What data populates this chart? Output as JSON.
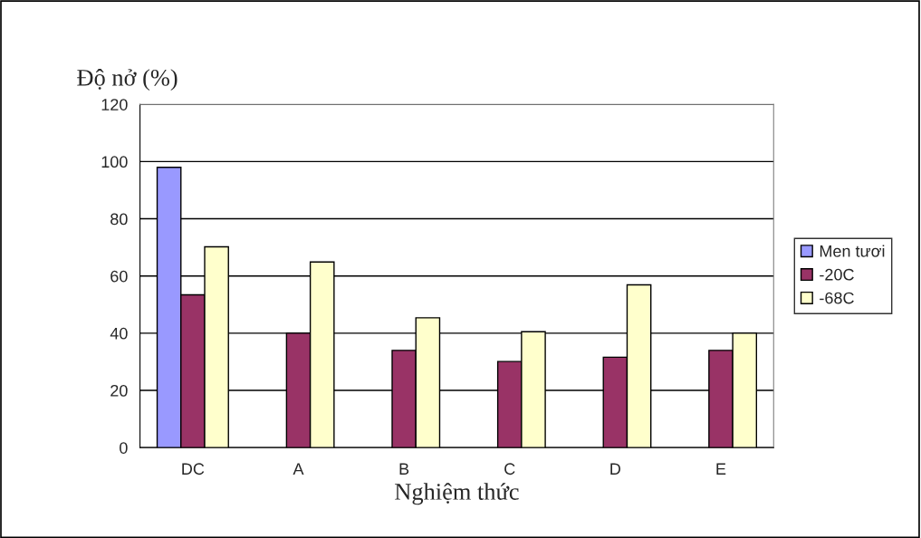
{
  "chart_data": {
    "type": "bar",
    "ylabel": "Độ nở (%)",
    "xlabel": "Nghiệm thức",
    "categories": [
      "DC",
      "A",
      "B",
      "C",
      "D",
      "E"
    ],
    "series": [
      {
        "name": "Men tươi",
        "color": "#9999ff",
        "values": [
          98,
          null,
          null,
          null,
          null,
          null
        ]
      },
      {
        "name": "-20C",
        "color": "#993366",
        "values": [
          53.4,
          40,
          34,
          30.1,
          31.6,
          34
        ]
      },
      {
        "name": "-68C",
        "color": "#ffffcc",
        "values": [
          70.2,
          64.9,
          45.4,
          40.5,
          56.9,
          40
        ]
      }
    ],
    "ylim": [
      0,
      120
    ],
    "yticks": [
      0,
      20,
      40,
      60,
      80,
      100,
      120
    ],
    "grid": "y",
    "legend": "right"
  }
}
